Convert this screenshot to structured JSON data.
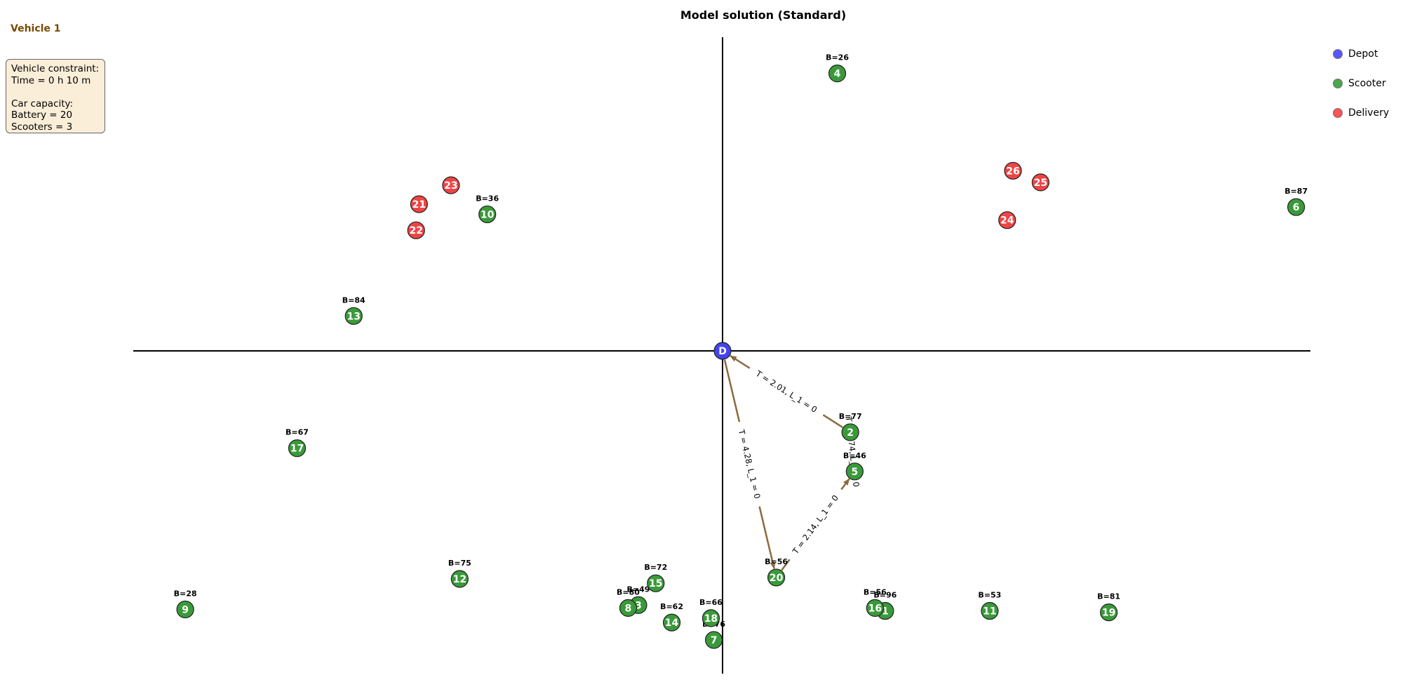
{
  "title": "Model solution (Standard)",
  "vehicle": {
    "title": "Vehicle 1",
    "constraint_heading": "Vehicle constraint:",
    "time": "Time = 0 h 10 m",
    "capacity_heading": "Car capacity:",
    "battery": "Battery = 20",
    "scooters": "Scooters = 3"
  },
  "legend": [
    {
      "label": "Depot",
      "color": "#1f1fff"
    },
    {
      "label": "Scooter",
      "color": "#0f8a0f"
    },
    {
      "label": "Delivery",
      "color": "#ff1a1a"
    }
  ],
  "colors": {
    "depot": "#4444ee",
    "scooter": "#3a9a3a",
    "delivery": "#ee4444",
    "route": "#8b6a3e"
  },
  "depot": {
    "label": "D",
    "x": 0,
    "y": 0
  },
  "scooters": [
    {
      "id": "1",
      "x": 1.12,
      "y": -1.79,
      "battery": "B=96"
    },
    {
      "id": "2",
      "x": 0.88,
      "y": -0.56,
      "battery": "B=77"
    },
    {
      "id": "3",
      "x": -0.58,
      "y": -1.75,
      "battery": "B=49"
    },
    {
      "id": "4",
      "x": 0.79,
      "y": 1.91,
      "battery": "B=26"
    },
    {
      "id": "5",
      "x": 0.91,
      "y": -0.83,
      "battery": "B=46"
    },
    {
      "id": "6",
      "x": 3.95,
      "y": 0.99,
      "battery": "B=87"
    },
    {
      "id": "7",
      "x": -0.06,
      "y": -1.99,
      "battery": "B=76"
    },
    {
      "id": "8",
      "x": -0.65,
      "y": -1.77,
      "battery": "B=80"
    },
    {
      "id": "9",
      "x": -3.7,
      "y": -1.78,
      "battery": "B=28"
    },
    {
      "id": "10",
      "x": -1.62,
      "y": 0.94,
      "battery": "B=36"
    },
    {
      "id": "11",
      "x": 1.84,
      "y": -1.79,
      "battery": "B=53"
    },
    {
      "id": "12",
      "x": -1.81,
      "y": -1.57,
      "battery": "B=75"
    },
    {
      "id": "13",
      "x": -2.54,
      "y": 0.24,
      "battery": "B=84"
    },
    {
      "id": "14",
      "x": -0.35,
      "y": -1.87,
      "battery": "B=62"
    },
    {
      "id": "15",
      "x": -0.46,
      "y": -1.6,
      "battery": "B=72"
    },
    {
      "id": "16",
      "x": 1.05,
      "y": -1.77,
      "battery": "B=56"
    },
    {
      "id": "17",
      "x": -2.93,
      "y": -0.67,
      "battery": "B=67"
    },
    {
      "id": "18",
      "x": -0.08,
      "y": -1.84,
      "battery": "B=66"
    },
    {
      "id": "19",
      "x": 2.66,
      "y": -1.8,
      "battery": "B=81"
    },
    {
      "id": "20",
      "x": 0.37,
      "y": -1.56,
      "battery": "B=56"
    }
  ],
  "deliveries": [
    {
      "id": "21",
      "x": -2.09,
      "y": 1.01
    },
    {
      "id": "22",
      "x": -2.11,
      "y": 0.83
    },
    {
      "id": "23",
      "x": -1.87,
      "y": 1.14
    },
    {
      "id": "24",
      "x": 1.96,
      "y": 0.9
    },
    {
      "id": "25",
      "x": 2.19,
      "y": 1.16
    },
    {
      "id": "26",
      "x": 2.0,
      "y": 1.24
    }
  ],
  "routes": [
    {
      "from": "D",
      "to": "20",
      "label": "T = 4.28, L_1 = 0"
    },
    {
      "from": "20",
      "to": "5",
      "label": "T = 2.14, L_1 = 0"
    },
    {
      "from": "5",
      "to": "2",
      "label": "T = 1.74, L_1 = 0"
    },
    {
      "from": "2",
      "to": "D",
      "label": "T = 2.01, L_1 = 0"
    }
  ]
}
